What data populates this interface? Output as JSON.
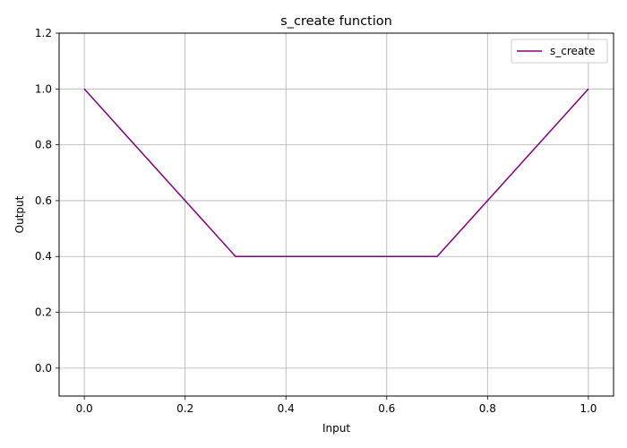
{
  "chart_data": {
    "type": "line",
    "title": "s_create function",
    "xlabel": "Input",
    "ylabel": "Output",
    "xlim": [
      -0.05,
      1.05
    ],
    "ylim": [
      -0.1,
      1.2
    ],
    "xticks": [
      0.0,
      0.2,
      0.4,
      0.6,
      0.8,
      1.0
    ],
    "xtick_labels": [
      "0.0",
      "0.2",
      "0.4",
      "0.6",
      "0.8",
      "1.0"
    ],
    "yticks": [
      0.0,
      0.2,
      0.4,
      0.6,
      0.8,
      1.0,
      1.2
    ],
    "ytick_labels": [
      "0.0",
      "0.2",
      "0.4",
      "0.6",
      "0.8",
      "1.0",
      "1.2"
    ],
    "grid": true,
    "legend_position": "top-right",
    "series": [
      {
        "name": "s_create",
        "color": "#800080",
        "x": [
          0.0,
          0.3,
          0.7,
          1.0
        ],
        "y": [
          1.0,
          0.4,
          0.4,
          1.0
        ]
      }
    ]
  }
}
